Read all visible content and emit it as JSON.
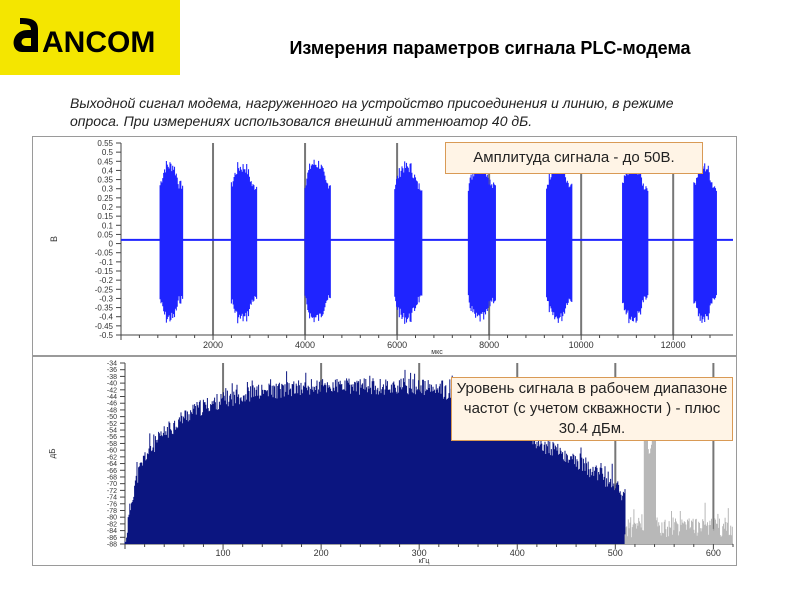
{
  "header": {
    "logo_text": "ANCOM",
    "title": "Измерения параметров сигнала PLC-модема"
  },
  "description": "Выходной сигнал модема, нагруженного на устройство присоединения и линию, в режиме опроса. При измерениях использовался внешний аттенюатор 40 дБ.",
  "callouts": {
    "amplitude": "Амплитуда сигнала - до 50В.",
    "level": "Уровень сигнала в рабочем диапазоне частот (с учетом скважности ) - плюс 30.4 дБм."
  },
  "colors": {
    "signal_blue": "#1f24ff",
    "spectrum_navy": "#0b1580",
    "noise_gray": "#b8b8b8",
    "grid": "#777777",
    "callout_bg": "#fff4e6",
    "callout_border": "#d99a55",
    "logo_bg": "#f4e600"
  },
  "chart_data": [
    {
      "type": "line",
      "xlabel": "мкс",
      "ylabel": "В",
      "xlim": [
        0,
        13300
      ],
      "ylim": [
        -0.5,
        0.55
      ],
      "x_ticks": [
        2000,
        4000,
        6000,
        8000,
        10000,
        12000
      ],
      "y_ticks": [
        0.55,
        0.5,
        0.45,
        0.4,
        0.35,
        0.3,
        0.25,
        0.2,
        0.15,
        0.1,
        0.05,
        0,
        -0.05,
        -0.1,
        -0.15,
        -0.2,
        -0.25,
        -0.3,
        -0.35,
        -0.4,
        -0.45,
        -0.5
      ],
      "y_tick_labels": [
        "0.55",
        "0.5",
        "0.45",
        "0.4",
        "0.35",
        "0.3",
        "0.25",
        "0.2",
        "0.15",
        "0.1",
        "0.05",
        "0",
        "-0.05",
        "-0.1",
        "-0.15",
        "-0.2",
        "-0.25",
        "-0.3",
        "-0.35",
        "-0.4",
        "-0.45",
        "-0.5"
      ],
      "baseline": 0.02,
      "bursts": [
        {
          "start": 850,
          "end": 1350,
          "peak": 0.46,
          "trough": -0.44
        },
        {
          "start": 2400,
          "end": 2950,
          "peak": 0.45,
          "trough": -0.44
        },
        {
          "start": 4000,
          "end": 4550,
          "peak": 0.47,
          "trough": -0.44
        },
        {
          "start": 5950,
          "end": 6550,
          "peak": 0.45,
          "trough": -0.44
        },
        {
          "start": 7550,
          "end": 8150,
          "peak": 0.45,
          "trough": -0.44
        },
        {
          "start": 9250,
          "end": 9800,
          "peak": 0.45,
          "trough": -0.44
        },
        {
          "start": 10900,
          "end": 11450,
          "peak": 0.45,
          "trough": -0.44
        },
        {
          "start": 12450,
          "end": 12950,
          "peak": 0.45,
          "trough": -0.44
        }
      ],
      "grid": true
    },
    {
      "type": "area",
      "xlabel": "кГц",
      "ylabel": "дБ",
      "xlim": [
        0,
        620
      ],
      "ylim": [
        -88,
        -34
      ],
      "x_ticks": [
        100,
        200,
        300,
        400,
        500,
        600
      ],
      "y_ticks": [
        -34,
        -36,
        -38,
        -40,
        -42,
        -44,
        -46,
        -48,
        -50,
        -52,
        -54,
        -56,
        -58,
        -60,
        -62,
        -64,
        -66,
        -68,
        -70,
        -72,
        -74,
        -76,
        -78,
        -80,
        -82,
        -84,
        -86,
        -88
      ],
      "y_tick_labels": [
        "-34",
        "-36",
        "-38",
        "-40",
        "-42",
        "-44",
        "-46",
        "-48",
        "-50",
        "-52",
        "-54",
        "-56",
        "-58",
        "-60",
        "-62",
        "-64",
        "-66",
        "-68",
        "-70",
        "-72",
        "-74",
        "-76",
        "-78",
        "-80",
        "-82",
        "-84",
        "-86",
        "-88"
      ],
      "envelope": {
        "x": [
          0,
          5,
          10,
          20,
          40,
          60,
          80,
          100,
          130,
          160,
          200,
          250,
          300,
          350,
          400,
          450,
          500,
          510
        ],
        "y": [
          -88,
          -78,
          -70,
          -62,
          -55,
          -50,
          -47,
          -45,
          -43,
          -42,
          -41,
          -41,
          -41,
          -44,
          -54,
          -62,
          -70,
          -74
        ]
      },
      "noise": {
        "x_range": [
          510,
          620
        ],
        "level": -83,
        "peak": {
          "x": 535,
          "y": -62
        }
      },
      "grid": true
    }
  ]
}
